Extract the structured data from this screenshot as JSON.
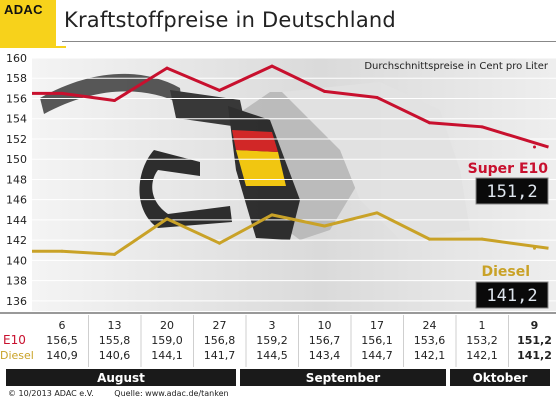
{
  "header": {
    "logo": "ADAC",
    "title": "Kraftstoffpreise in Deutschland"
  },
  "footer": {
    "copyright": "© 10/2013  ADAC e.V.",
    "source": "Quelle: www.adac.de/tanken"
  },
  "colors": {
    "e10": "#c8102e",
    "diesel": "#c9a227",
    "logo_bg": "#f7d21b",
    "month_band": "#1a1a1a"
  },
  "chart_data": {
    "type": "line",
    "subtitle": "Durchschnittspreise in Cent pro Liter",
    "ylim": [
      135,
      160
    ],
    "yticks": [
      136,
      138,
      140,
      142,
      144,
      146,
      148,
      150,
      152,
      154,
      156,
      158,
      160
    ],
    "grid": true,
    "categories": [
      "6",
      "13",
      "20",
      "27",
      "3",
      "10",
      "17",
      "24",
      "1",
      "9"
    ],
    "months": [
      {
        "label": "August",
        "from": 0,
        "to": 3
      },
      {
        "label": "September",
        "from": 4,
        "to": 7
      },
      {
        "label": "Oktober",
        "from": 8,
        "to": 9
      }
    ],
    "series": [
      {
        "name": "E10",
        "label": "Super E10",
        "display": "151,2",
        "color": "#c8102e",
        "values": [
          156.5,
          155.8,
          159.0,
          156.8,
          159.2,
          156.7,
          156.1,
          153.6,
          153.2,
          151.2
        ],
        "table": [
          "156,5",
          "155,8",
          "159,0",
          "156,8",
          "159,2",
          "156,7",
          "156,1",
          "153,6",
          "153,2",
          "151,2"
        ]
      },
      {
        "name": "Diesel",
        "label": "Diesel",
        "display": "141,2",
        "color": "#c9a227",
        "values": [
          140.9,
          140.6,
          144.1,
          141.7,
          144.5,
          143.4,
          144.7,
          142.1,
          142.1,
          141.2
        ],
        "table": [
          "140,9",
          "140,6",
          "144,1",
          "141,7",
          "144,5",
          "143,4",
          "144,7",
          "142,1",
          "142,1",
          "141,2"
        ]
      }
    ]
  }
}
